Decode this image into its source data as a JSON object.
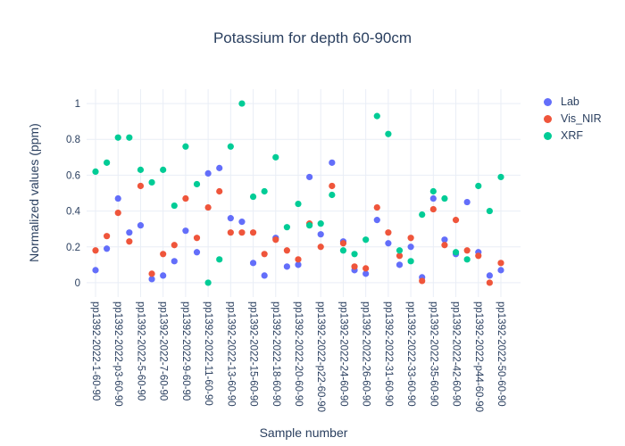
{
  "colors": {
    "text": "#2a3f5f",
    "grid": "#e9eef6",
    "background": "#ffffff",
    "lab": "#636efa",
    "vis_nir": "#ef553b",
    "xrf": "#00cc96"
  },
  "chart_data": {
    "type": "scatter",
    "title": "Potassium for depth 60-90cm",
    "xlabel": "Sample number",
    "ylabel": "Normalized values (ppm)",
    "ylim": [
      -0.08,
      1.08
    ],
    "yticks": [
      0,
      0.2,
      0.4,
      0.6,
      0.8,
      1
    ],
    "grid": true,
    "legend_position": "right",
    "n_samples": 37,
    "tick_every": 2,
    "x_tick_labels": [
      "pp1392-2022-1-60-90",
      "pp1392-2022-p3-60-90",
      "pp1392-2022-5-60-90",
      "pp1392-2022-7-60-90",
      "pp1392-2022-9-60-90",
      "pp1392-2022-11-60-90",
      "pp1392-2022-13-60-90",
      "pp1392-2022-15-60-90",
      "pp1392-2022-18-60-90",
      "pp1392-2022-20-60-90",
      "pp1392-2022-p22-60-90",
      "pp1392-2022-24-60-90",
      "pp1392-2022-26-60-90",
      "pp1392-2022-31-60-90",
      "pp1392-2022-33-60-90",
      "pp1392-2022-35-60-90",
      "pp1392-2022-42-60-90",
      "pp1392-2022-p44-60-90",
      "pp1392-2022-50-60-90"
    ],
    "series": [
      {
        "name": "Lab",
        "color": "#636efa",
        "values": [
          0.07,
          0.19,
          0.47,
          0.28,
          0.32,
          0.02,
          0.04,
          0.12,
          0.29,
          0.17,
          0.61,
          0.64,
          0.36,
          0.34,
          0.11,
          0.04,
          0.25,
          0.09,
          0.1,
          0.59,
          0.27,
          0.67,
          0.23,
          0.07,
          0.05,
          0.35,
          0.22,
          0.1,
          0.2,
          0.03,
          0.47,
          0.24,
          0.16,
          0.45,
          0.17,
          0.04,
          0.07
        ]
      },
      {
        "name": "Vis_NIR",
        "color": "#ef553b",
        "values": [
          0.18,
          0.26,
          0.39,
          0.23,
          0.54,
          0.05,
          0.16,
          0.21,
          0.47,
          0.25,
          0.42,
          0.51,
          0.28,
          0.28,
          0.28,
          0.16,
          0.24,
          0.18,
          0.13,
          0.33,
          0.2,
          0.54,
          0.22,
          0.09,
          0.08,
          0.42,
          0.28,
          0.15,
          0.25,
          0.01,
          0.41,
          0.21,
          0.35,
          0.18,
          0.15,
          0.0,
          0.11
        ]
      },
      {
        "name": "XRF",
        "color": "#00cc96",
        "values": [
          0.62,
          0.67,
          0.81,
          0.81,
          0.63,
          0.56,
          0.63,
          0.43,
          0.76,
          0.55,
          0.0,
          0.13,
          0.76,
          1.0,
          0.48,
          0.51,
          0.7,
          0.31,
          0.44,
          0.32,
          0.33,
          0.49,
          0.18,
          0.16,
          0.24,
          0.93,
          0.83,
          0.18,
          0.12,
          0.38,
          0.51,
          0.47,
          0.17,
          0.13,
          0.54,
          0.4,
          0.59
        ]
      }
    ]
  }
}
